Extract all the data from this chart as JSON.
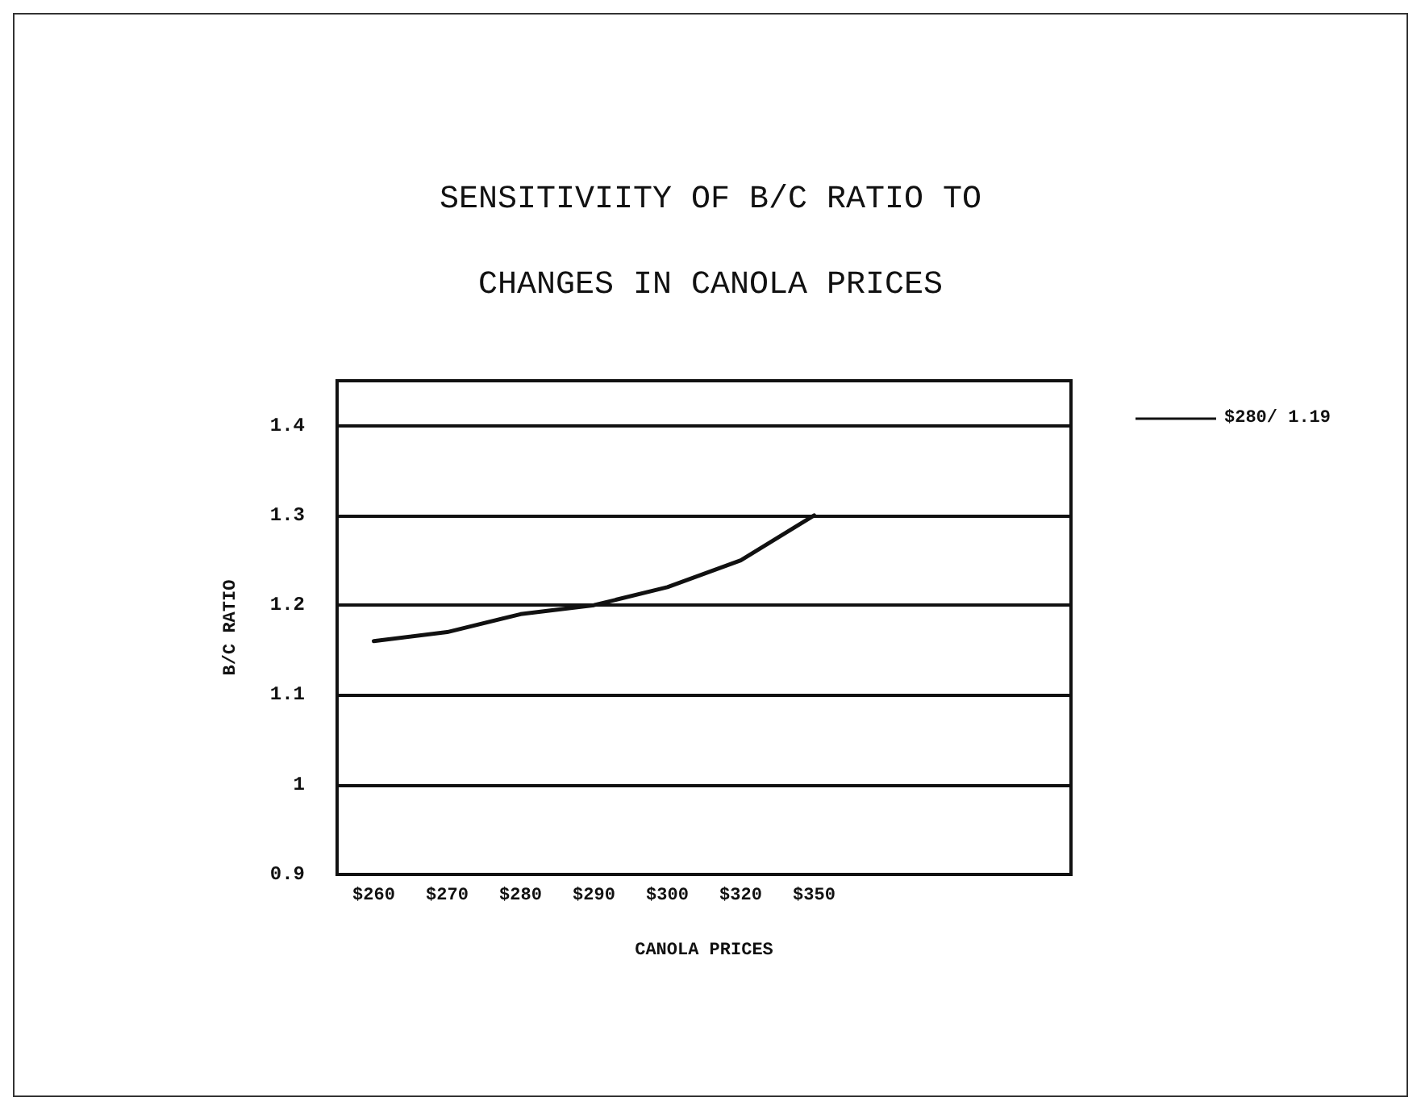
{
  "chart_data": {
    "type": "line",
    "title": "SENSITIVIITY OF B/C RATIO TO",
    "subtitle": "CHANGES IN CANOLA PRICES",
    "xlabel": "CANOLA PRICES",
    "ylabel": "B/C RATIO",
    "categories": [
      "$260",
      "$270",
      "$280",
      "$290",
      "$300",
      "$320",
      "$350",
      null,
      null,
      null
    ],
    "series": [
      {
        "name": "$280/ 1.19",
        "color": "#111111",
        "values": [
          1.16,
          1.17,
          1.19,
          1.2,
          1.22,
          1.25,
          1.3,
          null,
          null,
          null
        ]
      }
    ],
    "ylim": [
      0.9,
      1.45
    ],
    "yticks": [
      0.9,
      1,
      1.1,
      1.2,
      1.3,
      1.4
    ],
    "grid": "y",
    "legend": "right",
    "marker": "none",
    "line_style": "solid"
  }
}
